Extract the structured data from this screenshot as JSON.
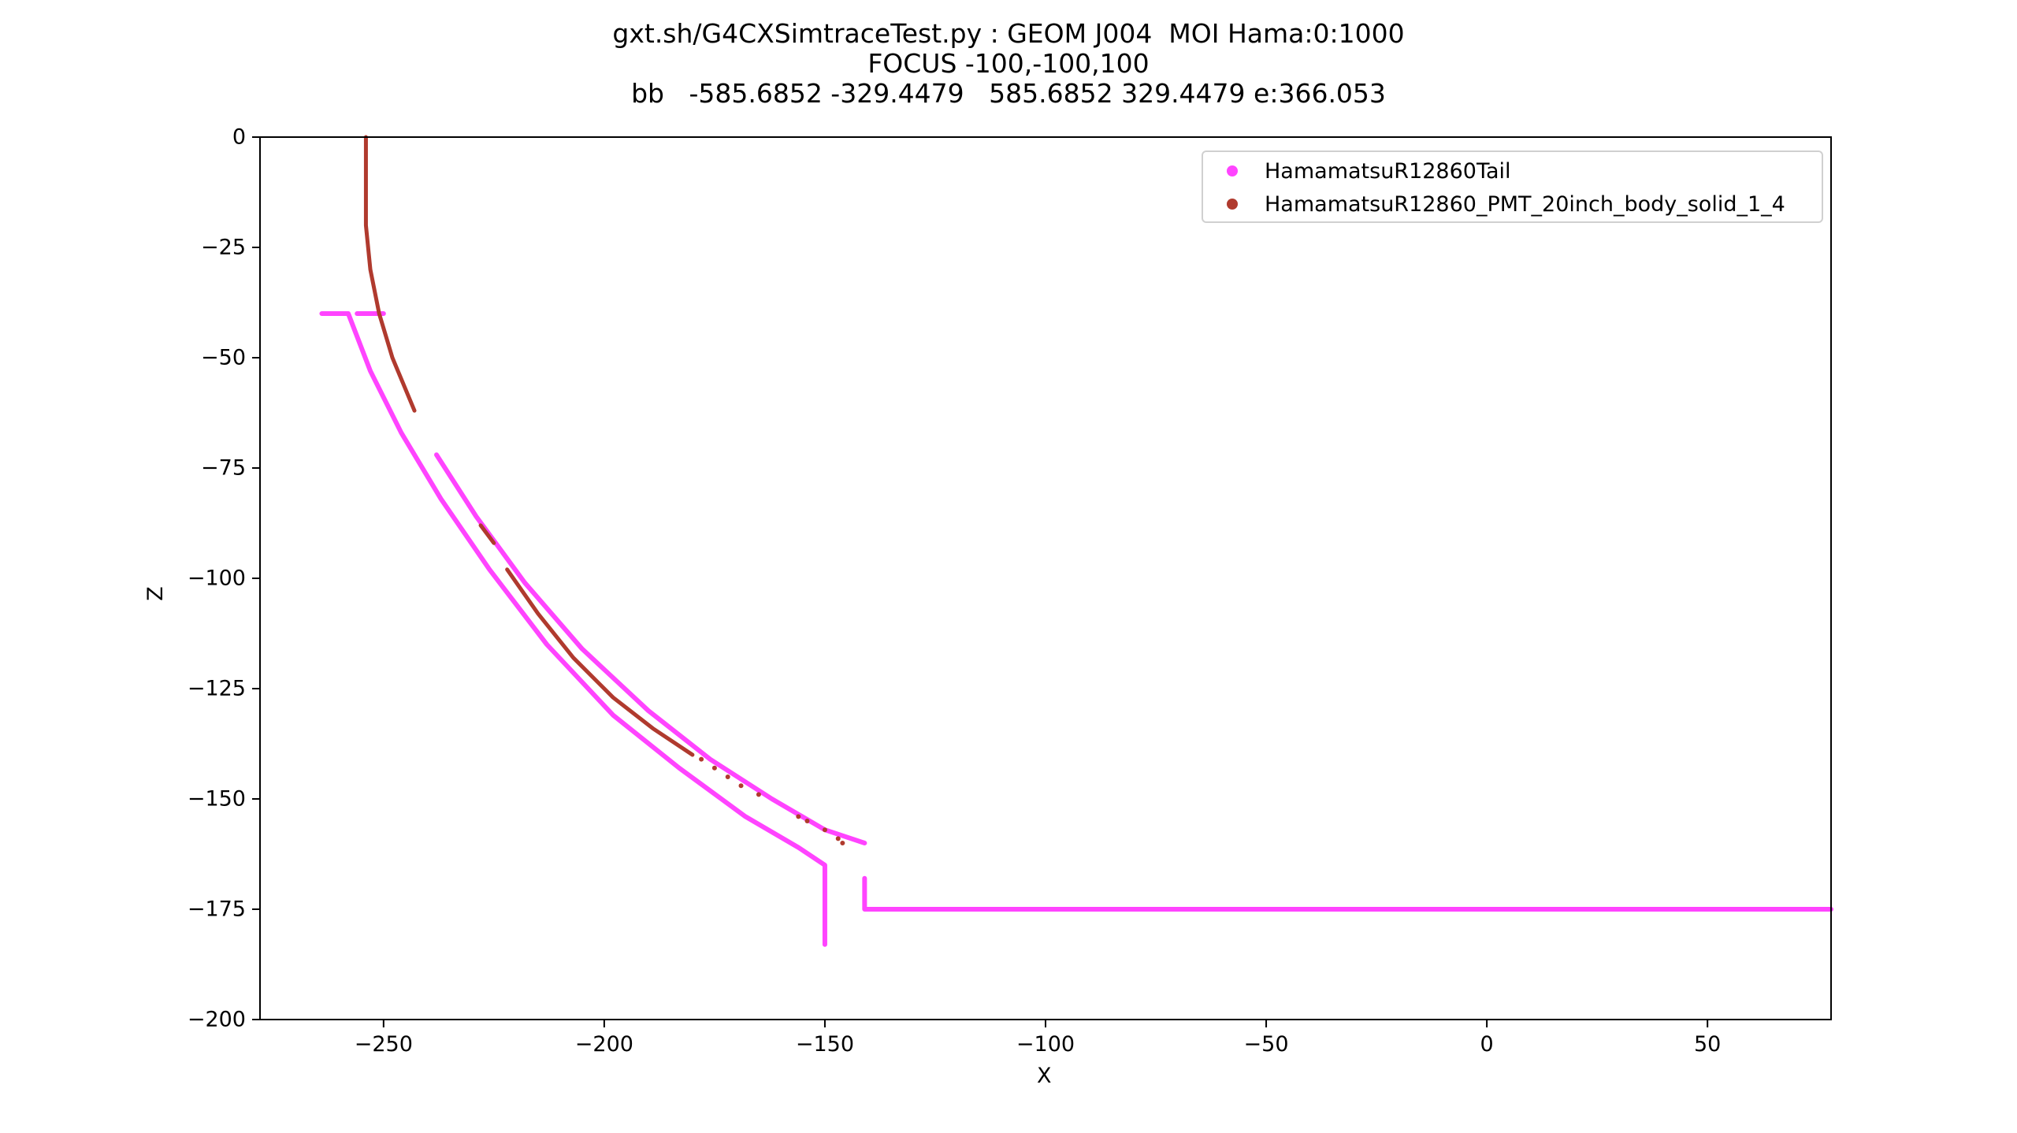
{
  "header": {
    "title_line1": "gxt.sh/G4CXSimtraceTest.py : GEOM J004  MOI Hama:0:1000",
    "title_line2": "FOCUS -100,-100,100",
    "title_line3": "bb   -585.6852 -329.4479   585.6852 329.4479 e:366.053"
  },
  "colors": {
    "tail": "#ff44ff",
    "body": "#b03a2e"
  },
  "chart_data": {
    "type": "scatter",
    "title": "gxt.sh/G4CXSimtraceTest.py : GEOM J004  MOI Hama:0:1000\nFOCUS -100,-100,100\nbb   -585.6852 -329.4479   585.6852 329.4479 e:366.053",
    "xlabel": "X",
    "ylabel": "Z",
    "xlim": [
      -278,
      78
    ],
    "ylim": [
      -200,
      0
    ],
    "xticks": [
      -250,
      -200,
      -150,
      -100,
      -50,
      0,
      50
    ],
    "xtick_labels": [
      "−250",
      "−200",
      "−150",
      "−100",
      "−50",
      "0",
      "50"
    ],
    "yticks": [
      0,
      -25,
      -50,
      -75,
      -100,
      -125,
      -150,
      -175,
      -200
    ],
    "ytick_labels": [
      "0",
      "−25",
      "−50",
      "−75",
      "−100",
      "−125",
      "−150",
      "−175",
      "−200"
    ],
    "grid": false,
    "legend_position": "top-right",
    "series": [
      {
        "name": "HamamatsuR12860Tail",
        "color": "#ff44ff",
        "polylines": [
          [
            [
              -264,
              -40
            ],
            [
              -258,
              -40
            ],
            [
              -253,
              -53
            ],
            [
              -246,
              -67
            ],
            [
              -237,
              -82
            ],
            [
              -226,
              -98
            ],
            [
              -213,
              -115
            ],
            [
              -198,
              -131
            ],
            [
              -183,
              -143
            ],
            [
              -168,
              -154
            ],
            [
              -156,
              -161
            ],
            [
              -150,
              -165
            ],
            [
              -150,
              -183
            ]
          ],
          [
            [
              -256,
              -40
            ],
            [
              -250,
              -40
            ]
          ],
          [
            [
              -238,
              -72
            ],
            [
              -229,
              -86
            ],
            [
              -218,
              -101
            ],
            [
              -205,
              -116
            ],
            [
              -190,
              -130
            ],
            [
              -176,
              -141
            ],
            [
              -162,
              -150
            ],
            [
              -150,
              -157
            ],
            [
              -141,
              -160
            ]
          ],
          [
            [
              -141,
              -168
            ],
            [
              -141,
              -175
            ],
            [
              78,
              -175
            ]
          ]
        ]
      },
      {
        "name": "HamamatsuR12860_PMT_20inch_body_solid_1_4",
        "color": "#b03a2e",
        "polylines": [
          [
            [
              -254,
              0
            ],
            [
              -254,
              -10
            ],
            [
              -254,
              -20
            ],
            [
              -253,
              -30
            ],
            [
              -251,
              -40
            ],
            [
              -248,
              -50
            ],
            [
              -243,
              -62
            ]
          ],
          [
            [
              -222,
              -98
            ],
            [
              -215,
              -108
            ],
            [
              -207,
              -118
            ],
            [
              -198,
              -127
            ],
            [
              -189,
              -134
            ],
            [
              -180,
              -140
            ]
          ],
          [
            [
              -228,
              -88
            ],
            [
              -225,
              -92
            ]
          ]
        ],
        "points": [
          [
            -178,
            -141
          ],
          [
            -175,
            -143
          ],
          [
            -172,
            -145
          ],
          [
            -169,
            -147
          ],
          [
            -165,
            -149
          ],
          [
            -156,
            -154
          ],
          [
            -154,
            -155
          ],
          [
            -150,
            -157
          ],
          [
            -147,
            -159
          ],
          [
            -146,
            -160
          ]
        ]
      }
    ]
  }
}
